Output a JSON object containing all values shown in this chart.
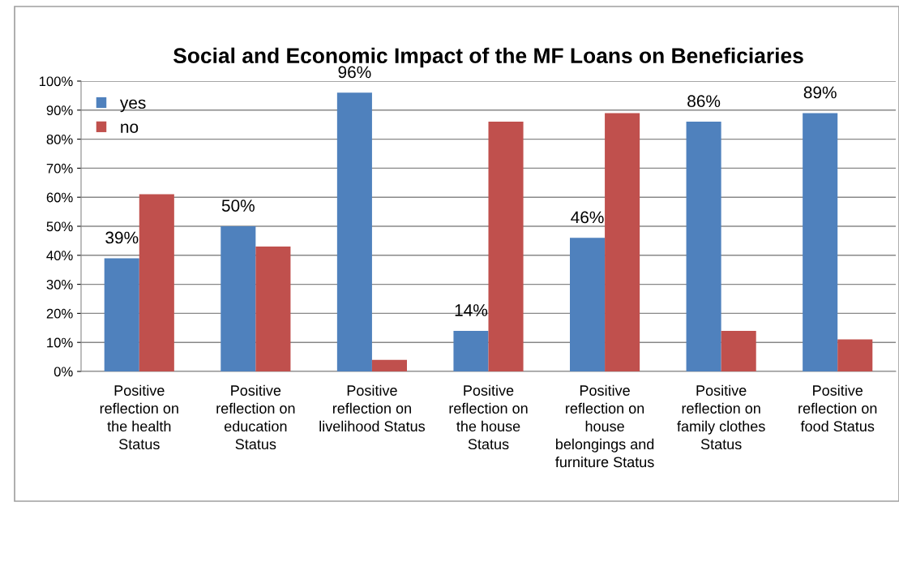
{
  "chart_data": {
    "type": "bar",
    "title": "Social and Economic Impact of the MF Loans on Beneficiaries",
    "categories": [
      "Positive\nreflection on\nthe health\nStatus",
      "Positive\nreflection on\neducation\nStatus",
      "Positive\nreflection on\nlivelihood Status",
      "Positive\nreflection on\nthe house\nStatus",
      "Positive\nreflection on\nhouse\nbelongings and\nfurniture Status",
      "Positive\nreflection on\nfamily clothes\nStatus",
      "Positive\nreflection on\nfood Status"
    ],
    "series": [
      {
        "name": "yes",
        "color": "#4f81bd",
        "values": [
          39,
          50,
          96,
          14,
          46,
          86,
          89
        ],
        "value_labels": [
          "39%",
          "50%",
          "96%",
          "14%",
          "46%",
          "86%",
          "89%"
        ]
      },
      {
        "name": "no",
        "color": "#c0504d",
        "values": [
          61,
          43,
          4,
          86,
          89,
          14,
          11
        ]
      }
    ],
    "ylim": [
      0,
      100
    ],
    "yticks": [
      {
        "value": 0,
        "label": "0%"
      },
      {
        "value": 10,
        "label": "10%"
      },
      {
        "value": 20,
        "label": "20%"
      },
      {
        "value": 30,
        "label": "30%"
      },
      {
        "value": 40,
        "label": "40%"
      },
      {
        "value": 50,
        "label": "50%"
      },
      {
        "value": 60,
        "label": "60%"
      },
      {
        "value": 70,
        "label": "70%"
      },
      {
        "value": 80,
        "label": "80%"
      },
      {
        "value": 90,
        "label": "90%"
      },
      {
        "value": 100,
        "label": "100%"
      }
    ],
    "grid": "y",
    "legend": "top left"
  }
}
